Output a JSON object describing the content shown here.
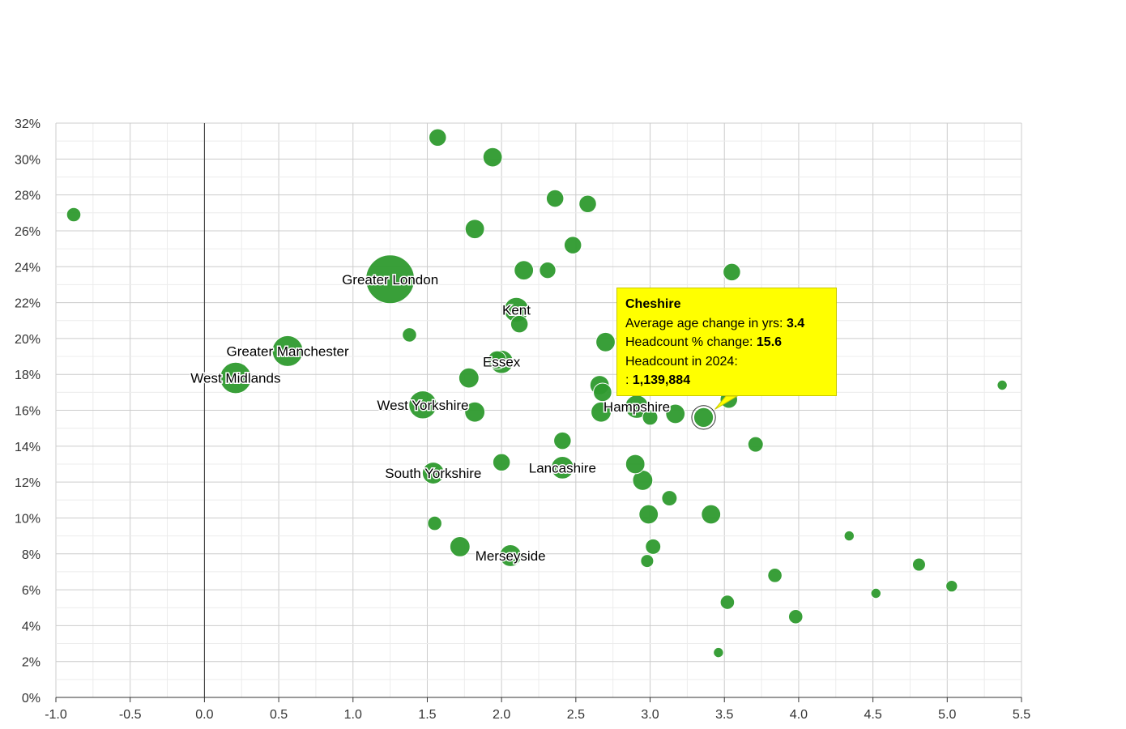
{
  "chart_data": {
    "type": "scatter",
    "title": "",
    "xlabel": "",
    "ylabel": "",
    "xlim": [
      -1.0,
      5.5
    ],
    "ylim": [
      0,
      32
    ],
    "x_ticks": [
      "-1.0",
      "-0.5",
      "0.0",
      "0.5",
      "1.0",
      "1.5",
      "2.0",
      "2.5",
      "3.0",
      "3.5",
      "4.0",
      "4.5",
      "5.0",
      "5.5"
    ],
    "y_ticks": [
      "0%",
      "2%",
      "4%",
      "6%",
      "8%",
      "10%",
      "12%",
      "14%",
      "16%",
      "18%",
      "20%",
      "22%",
      "24%",
      "26%",
      "28%",
      "30%",
      "32%"
    ],
    "grid": true,
    "legend": "none",
    "bubble_color": "#2e9a2e",
    "points": [
      {
        "x": 1.25,
        "y": 23.3,
        "size": 7.0,
        "label": "Greater London"
      },
      {
        "x": 0.56,
        "y": 19.3,
        "size": 2.8,
        "label": "Greater Manchester"
      },
      {
        "x": 0.21,
        "y": 17.8,
        "size": 2.9,
        "label": "West Midlands"
      },
      {
        "x": 2.1,
        "y": 21.6,
        "size": 1.8,
        "label": "Kent"
      },
      {
        "x": 2.0,
        "y": 18.7,
        "size": 1.6,
        "label": "Essex"
      },
      {
        "x": 1.47,
        "y": 16.3,
        "size": 2.3,
        "label": "West Yorkshire"
      },
      {
        "x": 1.54,
        "y": 12.5,
        "size": 1.4,
        "label": "South Yorkshire"
      },
      {
        "x": 2.41,
        "y": 12.8,
        "size": 1.5,
        "label": "Lancashire"
      },
      {
        "x": 2.06,
        "y": 7.9,
        "size": 1.4,
        "label": "Merseyside"
      },
      {
        "x": 2.91,
        "y": 16.2,
        "size": 1.6,
        "label": "Hampshire"
      },
      {
        "x": 3.36,
        "y": 15.6,
        "size": 1.14,
        "label": "",
        "highlighted": true
      },
      {
        "x": -0.88,
        "y": 26.9,
        "size": 0.6,
        "label": ""
      },
      {
        "x": 1.57,
        "y": 31.2,
        "size": 0.9,
        "label": ""
      },
      {
        "x": 1.94,
        "y": 30.1,
        "size": 1.1,
        "label": ""
      },
      {
        "x": 2.36,
        "y": 27.8,
        "size": 0.9,
        "label": ""
      },
      {
        "x": 2.58,
        "y": 27.5,
        "size": 0.9,
        "label": ""
      },
      {
        "x": 1.82,
        "y": 26.1,
        "size": 1.1,
        "label": ""
      },
      {
        "x": 2.48,
        "y": 25.2,
        "size": 0.9,
        "label": ""
      },
      {
        "x": 2.15,
        "y": 23.8,
        "size": 1.1,
        "label": ""
      },
      {
        "x": 2.31,
        "y": 23.8,
        "size": 0.8,
        "label": ""
      },
      {
        "x": 3.55,
        "y": 23.7,
        "size": 0.9,
        "label": ""
      },
      {
        "x": 2.12,
        "y": 20.8,
        "size": 0.9,
        "label": ""
      },
      {
        "x": 1.38,
        "y": 20.2,
        "size": 0.6,
        "label": ""
      },
      {
        "x": 2.7,
        "y": 19.8,
        "size": 1.1,
        "label": ""
      },
      {
        "x": 1.78,
        "y": 17.8,
        "size": 1.2,
        "label": ""
      },
      {
        "x": 1.97,
        "y": 18.8,
        "size": 1.0,
        "label": ""
      },
      {
        "x": 2.66,
        "y": 17.4,
        "size": 1.1,
        "label": ""
      },
      {
        "x": 2.68,
        "y": 17.0,
        "size": 1.0,
        "label": ""
      },
      {
        "x": 3.53,
        "y": 16.6,
        "size": 0.9,
        "label": ""
      },
      {
        "x": 5.37,
        "y": 17.4,
        "size": 0.3,
        "label": ""
      },
      {
        "x": 1.82,
        "y": 15.9,
        "size": 1.2,
        "label": ""
      },
      {
        "x": 2.67,
        "y": 15.9,
        "size": 1.2,
        "label": ""
      },
      {
        "x": 3.0,
        "y": 15.6,
        "size": 0.7,
        "label": ""
      },
      {
        "x": 3.17,
        "y": 15.8,
        "size": 1.1,
        "label": ""
      },
      {
        "x": 3.71,
        "y": 14.1,
        "size": 0.7,
        "label": ""
      },
      {
        "x": 2.41,
        "y": 14.3,
        "size": 0.9,
        "label": ""
      },
      {
        "x": 2.0,
        "y": 13.1,
        "size": 0.9,
        "label": ""
      },
      {
        "x": 2.9,
        "y": 13.0,
        "size": 1.1,
        "label": ""
      },
      {
        "x": 2.95,
        "y": 12.1,
        "size": 1.2,
        "label": ""
      },
      {
        "x": 3.13,
        "y": 11.1,
        "size": 0.7,
        "label": ""
      },
      {
        "x": 2.99,
        "y": 10.2,
        "size": 1.1,
        "label": ""
      },
      {
        "x": 3.41,
        "y": 10.2,
        "size": 1.1,
        "label": ""
      },
      {
        "x": 1.55,
        "y": 9.7,
        "size": 0.6,
        "label": ""
      },
      {
        "x": 1.72,
        "y": 8.4,
        "size": 1.2,
        "label": ""
      },
      {
        "x": 3.02,
        "y": 8.4,
        "size": 0.7,
        "label": ""
      },
      {
        "x": 2.98,
        "y": 7.6,
        "size": 0.5,
        "label": ""
      },
      {
        "x": 4.34,
        "y": 9.0,
        "size": 0.3,
        "label": ""
      },
      {
        "x": 4.81,
        "y": 7.4,
        "size": 0.5,
        "label": ""
      },
      {
        "x": 3.84,
        "y": 6.8,
        "size": 0.6,
        "label": ""
      },
      {
        "x": 5.03,
        "y": 6.2,
        "size": 0.4,
        "label": ""
      },
      {
        "x": 4.52,
        "y": 5.8,
        "size": 0.3,
        "label": ""
      },
      {
        "x": 3.52,
        "y": 5.3,
        "size": 0.6,
        "label": ""
      },
      {
        "x": 3.98,
        "y": 4.5,
        "size": 0.6,
        "label": ""
      },
      {
        "x": 3.46,
        "y": 2.5,
        "size": 0.3,
        "label": ""
      }
    ]
  },
  "tooltip": {
    "title": "Cheshire",
    "rows": [
      {
        "label": "Average age change in yrs:",
        "value": "3.4"
      },
      {
        "label": "Headcount % change:",
        "value": "15.6"
      },
      {
        "label": "Headcount in 2024:",
        "value": ""
      },
      {
        "label": ":",
        "value": "1,139,884"
      }
    ]
  }
}
